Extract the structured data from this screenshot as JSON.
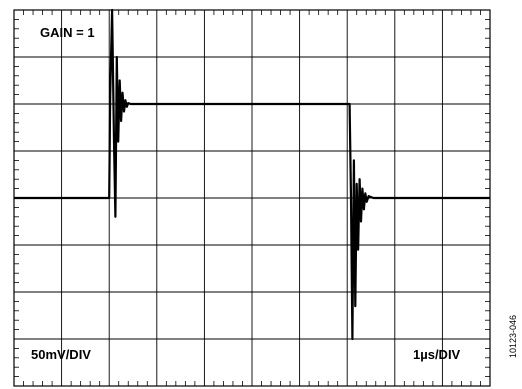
{
  "chart_data": {
    "type": "line",
    "title": "",
    "annotations": {
      "gain": "GAIN = 1",
      "vertical_scale": "50mV/DIV",
      "horizontal_scale": "1µs/DIV"
    },
    "figure_id": "10123-046",
    "divisions": {
      "x": 10,
      "y": 8
    },
    "grid": true,
    "units": {
      "x": "µs",
      "y": "mV"
    },
    "xlim": [
      0,
      10
    ],
    "ylim": [
      -200,
      200
    ],
    "series": [
      {
        "x": [
          0,
          2,
          2.02,
          2.06,
          2.1,
          2.13,
          2.16,
          2.19,
          2.22,
          2.25,
          2.28,
          2.31,
          2.34,
          2.37,
          2.4,
          2.45,
          2.55,
          7.05,
          7.08,
          7.11,
          7.14,
          7.17,
          7.2,
          7.23,
          7.26,
          7.29,
          7.32,
          7.35,
          7.38,
          7.41,
          7.45,
          7.55,
          10
        ],
        "y": [
          0,
          0,
          110,
          200,
          60,
          -20,
          150,
          60,
          125,
          82,
          112,
          92,
          104,
          97,
          101,
          100,
          100,
          100,
          0,
          -150,
          40,
          -115,
          15,
          -55,
          20,
          -25,
          10,
          -12,
          5,
          -4,
          2,
          0,
          0
        ]
      }
    ]
  }
}
